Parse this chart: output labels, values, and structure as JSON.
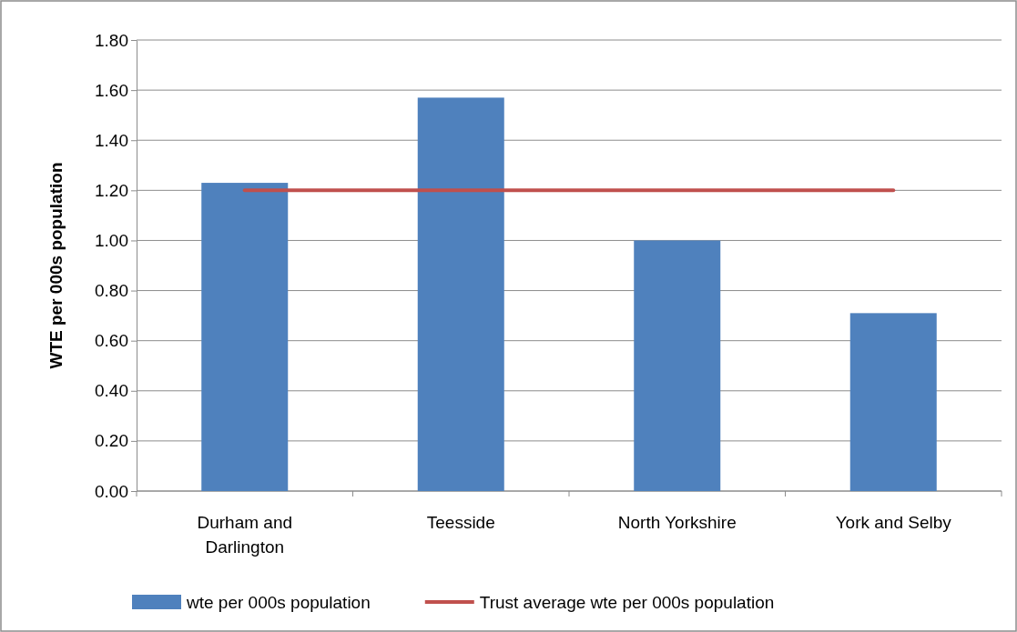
{
  "chart_data": {
    "type": "bar",
    "ylabel": "WTE per 000s population",
    "categories": [
      "Durham and Darlington",
      "Teesside",
      "North Yorkshire",
      "York and Selby"
    ],
    "series": [
      {
        "name": "wte per 000s population",
        "color": "#4f81bd",
        "values": [
          1.23,
          1.57,
          1.0,
          0.71
        ]
      },
      {
        "name": "Trust average wte per 000s population",
        "type": "line",
        "color": "#c0504d",
        "values": [
          1.2,
          1.2,
          1.2,
          1.2
        ]
      }
    ],
    "ylim": [
      0,
      1.8
    ],
    "yticks": [
      {
        "value": 0,
        "label": "0.00"
      },
      {
        "value": 0.2,
        "label": "0.20"
      },
      {
        "value": 0.4,
        "label": "0.40"
      },
      {
        "value": 0.6,
        "label": "0.60"
      },
      {
        "value": 0.8,
        "label": "0.80"
      },
      {
        "value": 1.0,
        "label": "1.00"
      },
      {
        "value": 1.2,
        "label": "1.20"
      },
      {
        "value": 1.4,
        "label": "1.40"
      },
      {
        "value": 1.6,
        "label": "1.60"
      },
      {
        "value": 1.8,
        "label": "1.80"
      }
    ],
    "grid": "y",
    "legend": "bottom",
    "marker": "none",
    "line_style": "solid"
  }
}
